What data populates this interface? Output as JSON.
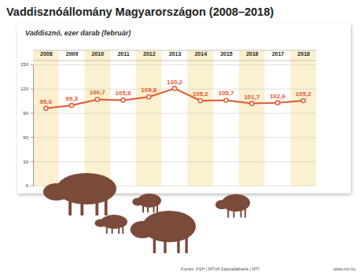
{
  "chart_data": {
    "type": "line",
    "title": "Vaddisznóállomány Magyarországon (2008–2018)",
    "subtitle": "Vaddisznó, ezer darab (február)",
    "categories": [
      "2008",
      "2009",
      "2010",
      "2011",
      "2012",
      "2013",
      "2014",
      "2015",
      "2016",
      "2017",
      "2018"
    ],
    "values": [
      95.6,
      99.3,
      106.7,
      105.8,
      109.8,
      120.2,
      105.2,
      105.7,
      101.7,
      102.6,
      105.2
    ],
    "value_labels": [
      "95,6",
      "99,3",
      "106,7",
      "105,8",
      "109,8",
      "120,2",
      "105,2",
      "105,7",
      "101,7",
      "102,6",
      "105,2"
    ],
    "color": "#e4572e",
    "marker": "circle",
    "ylim": [
      0,
      150
    ],
    "yticks": [
      0,
      30,
      60,
      90,
      120,
      150
    ],
    "grid": true,
    "data_labels": true,
    "source": "Forrás: KSH | MTVA Sajtóadatbank | MTI",
    "annotations": [
      "www.mti.hu"
    ]
  }
}
